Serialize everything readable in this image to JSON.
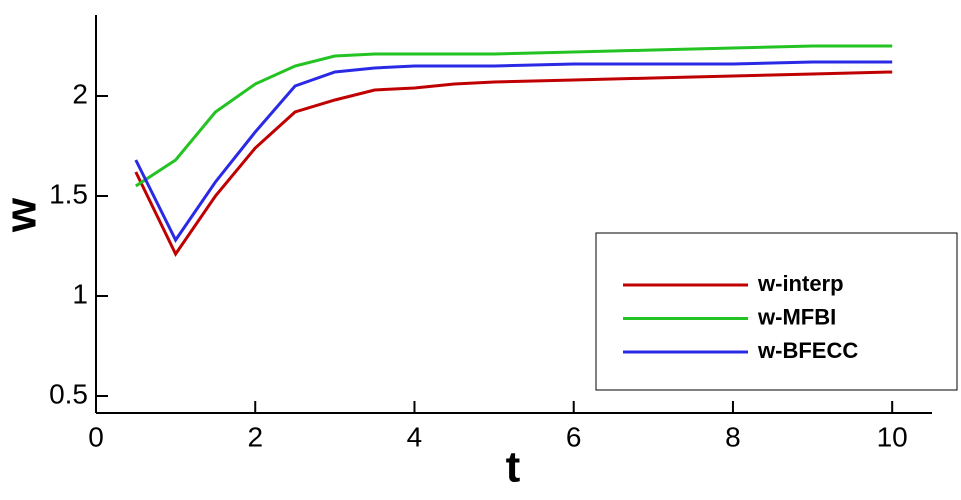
{
  "chart_data": {
    "type": "line",
    "xlabel": "t",
    "ylabel": "w",
    "x": [
      0.5,
      1,
      1.5,
      2,
      2.5,
      3,
      3.5,
      4,
      4.5,
      5,
      6,
      7,
      8,
      9,
      10
    ],
    "series": [
      {
        "name": "w-interp",
        "color": "#c00000",
        "values": [
          1.62,
          1.21,
          1.5,
          1.74,
          1.92,
          1.98,
          2.03,
          2.04,
          2.06,
          2.07,
          2.08,
          2.09,
          2.1,
          2.11,
          2.12
        ]
      },
      {
        "name": "w-MFBI",
        "color": "#22c322",
        "values": [
          1.55,
          1.68,
          1.92,
          2.06,
          2.15,
          2.2,
          2.21,
          2.21,
          2.21,
          2.21,
          2.22,
          2.23,
          2.24,
          2.25,
          2.25
        ]
      },
      {
        "name": "w-BFECC",
        "color": "#2a2ae6",
        "values": [
          1.68,
          1.28,
          1.57,
          1.82,
          2.05,
          2.12,
          2.14,
          2.15,
          2.15,
          2.15,
          2.16,
          2.16,
          2.16,
          2.17,
          2.17
        ]
      }
    ],
    "xlim": [
      0,
      10.5
    ],
    "ylim": [
      0.415,
      2.405
    ],
    "xticks": [
      0,
      2,
      4,
      6,
      8,
      10
    ],
    "yticks": [
      0.5,
      1,
      1.5,
      2
    ],
    "legend": "lower right"
  }
}
